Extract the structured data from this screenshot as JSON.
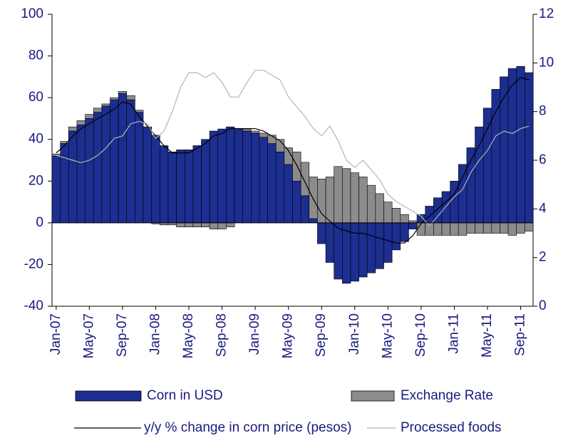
{
  "chart_data": {
    "type": "bar",
    "stacked": true,
    "categories": [
      "Jan-07",
      null,
      null,
      null,
      "May-07",
      null,
      null,
      null,
      "Sep-07",
      null,
      null,
      null,
      "Jan-08",
      null,
      null,
      null,
      "May-08",
      null,
      null,
      null,
      "Sep-08",
      null,
      null,
      null,
      "Jan-09",
      null,
      null,
      null,
      "May-09",
      null,
      null,
      null,
      "Sep-09",
      null,
      null,
      null,
      "Jan-10",
      null,
      null,
      null,
      "May-10",
      null,
      null,
      null,
      "Sep-10",
      null,
      null,
      null,
      "Jan-11",
      null,
      null,
      null,
      "May-11",
      null,
      null,
      null,
      "Sep-11",
      null
    ],
    "series": [
      {
        "name": "Corn in USD",
        "type": "bar",
        "color": "#1c2e8f",
        "values": [
          32,
          38,
          44,
          47,
          50,
          53,
          56,
          59,
          62,
          59,
          53,
          46,
          42,
          37,
          34,
          35,
          35,
          37,
          40,
          44,
          45,
          46,
          45,
          44,
          43,
          41,
          38,
          34,
          28,
          20,
          13,
          2,
          -10,
          -19,
          -27,
          -29,
          -28,
          -26,
          -24,
          -22,
          -19,
          -13,
          -9,
          -3,
          4,
          8,
          12,
          15,
          20,
          28,
          36,
          46,
          55,
          64,
          70,
          74,
          75,
          72
        ]
      },
      {
        "name": "Exchange Rate",
        "type": "bar",
        "color": "#8c8c8c",
        "values": [
          1,
          1,
          2,
          2,
          2,
          2,
          1,
          1,
          1,
          2,
          1,
          0,
          -0.5,
          -1,
          -1,
          -2,
          -2,
          -2,
          -2,
          -3,
          -3,
          -2,
          0,
          1,
          1,
          2,
          4,
          6,
          8,
          14,
          16,
          20,
          21,
          22,
          27,
          26,
          24,
          22,
          18,
          14,
          10,
          7,
          4,
          1,
          -6,
          -6,
          -6,
          -6,
          -6,
          -6,
          -5,
          -5,
          -5,
          -5,
          -5,
          -6,
          -5,
          -4
        ]
      },
      {
        "name": "y/y % change in corn price (pesos)",
        "type": "line",
        "axis": "y2",
        "color": "#000000",
        "values": [
          6.3,
          6.6,
          7.0,
          7.3,
          7.5,
          7.7,
          7.9,
          8.1,
          8.4,
          8.3,
          7.8,
          7.4,
          7.0,
          6.6,
          6.3,
          6.3,
          6.3,
          6.5,
          6.7,
          7.0,
          7.1,
          7.3,
          7.3,
          7.3,
          7.3,
          7.2,
          7.0,
          6.8,
          6.4,
          5.8,
          5.1,
          4.4,
          3.8,
          3.5,
          3.2,
          3.1,
          3.0,
          3.0,
          2.9,
          2.8,
          2.7,
          2.6,
          2.6,
          2.9,
          3.4,
          3.7,
          4.0,
          4.3,
          4.6,
          5.3,
          6.0,
          6.6,
          7.3,
          8.0,
          8.6,
          9.1,
          9.4,
          9.3
        ]
      },
      {
        "name": "Processed foods",
        "type": "line",
        "axis": "y2",
        "color": "#b4b4b4",
        "values": [
          6.2,
          6.1,
          6.0,
          5.9,
          6.0,
          6.2,
          6.5,
          6.9,
          7.0,
          7.5,
          7.6,
          7.5,
          6.9,
          7.2,
          8.0,
          9.0,
          9.6,
          9.6,
          9.4,
          9.6,
          9.2,
          8.6,
          8.6,
          9.2,
          9.7,
          9.7,
          9.5,
          9.3,
          8.6,
          8.2,
          7.8,
          7.3,
          7.0,
          7.4,
          6.8,
          6.0,
          5.7,
          6.0,
          5.6,
          5.2,
          4.6,
          4.3,
          4.1,
          3.9,
          3.7,
          3.3,
          3.7,
          4.1,
          4.5,
          4.8,
          5.5,
          6.0,
          6.4,
          7.0,
          7.2,
          7.1,
          7.3,
          7.4
        ]
      }
    ],
    "ylim": [
      -40,
      100
    ],
    "yticks": [
      -40,
      -20,
      0,
      20,
      40,
      60,
      80,
      100
    ],
    "y2lim": [
      0,
      12
    ],
    "y2ticks": [
      0,
      2,
      4,
      6,
      8,
      10,
      12
    ],
    "grid": false
  }
}
